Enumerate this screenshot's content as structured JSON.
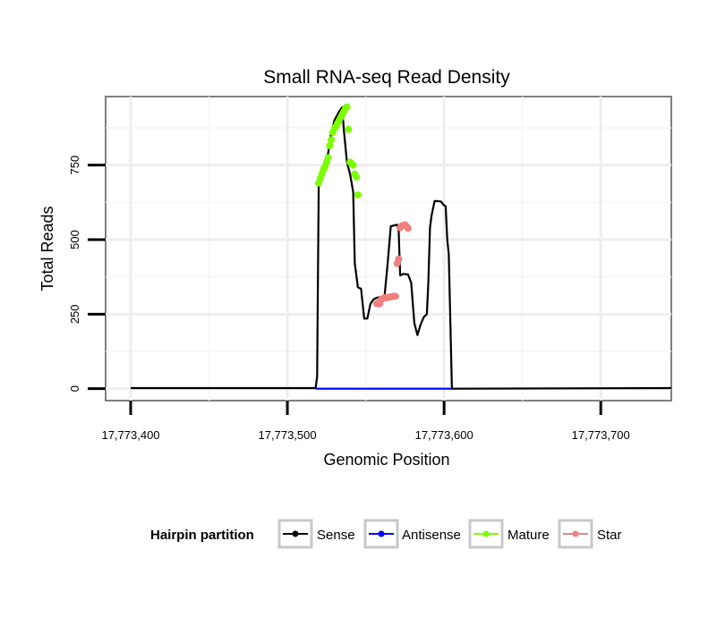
{
  "chart_data": {
    "type": "line",
    "title": "Small RNA-seq Read Density",
    "xlabel": "Genomic Position",
    "ylabel": "Total Reads",
    "xlim": [
      17773384,
      17773745
    ],
    "ylim": [
      -40,
      980
    ],
    "x_ticks": [
      {
        "value": 17773400,
        "label": "17,773,400"
      },
      {
        "value": 17773500,
        "label": "17,773,500"
      },
      {
        "value": 17773600,
        "label": "17,773,600"
      },
      {
        "value": 17773700,
        "label": "17,773,700"
      }
    ],
    "y_ticks": [
      {
        "value": 0,
        "label": "0"
      },
      {
        "value": 250,
        "label": "250"
      },
      {
        "value": 500,
        "label": "500"
      },
      {
        "value": 750,
        "label": "750"
      }
    ],
    "grid": true,
    "legend": {
      "title": "Hairpin partition",
      "placement": "bottom",
      "entries": [
        {
          "name": "Sense",
          "color": "#000000"
        },
        {
          "name": "Antisense",
          "color": "#0000ff"
        },
        {
          "name": "Mature",
          "color": "#7cfc00"
        },
        {
          "name": "Star",
          "color": "#f08080"
        }
      ]
    },
    "series": [
      {
        "name": "Sense",
        "color": "#000000",
        "style": "line",
        "points": [
          [
            17773400,
            2
          ],
          [
            17773518,
            2
          ],
          [
            17773519,
            40
          ],
          [
            17773520,
            690
          ],
          [
            17773523,
            730
          ],
          [
            17773526,
            790
          ],
          [
            17773528,
            860
          ],
          [
            17773530,
            900
          ],
          [
            17773533,
            930
          ],
          [
            17773535,
            945
          ],
          [
            17773536,
            870
          ],
          [
            17773538,
            760
          ],
          [
            17773540,
            720
          ],
          [
            17773542,
            660
          ],
          [
            17773543,
            420
          ],
          [
            17773545,
            340
          ],
          [
            17773547,
            335
          ],
          [
            17773549,
            235
          ],
          [
            17773551,
            235
          ],
          [
            17773553,
            285
          ],
          [
            17773555,
            300
          ],
          [
            17773557,
            305
          ],
          [
            17773562,
            310
          ],
          [
            17773564,
            420
          ],
          [
            17773566,
            545
          ],
          [
            17773570,
            550
          ],
          [
            17773571,
            530
          ],
          [
            17773572,
            380
          ],
          [
            17773574,
            385
          ],
          [
            17773577,
            383
          ],
          [
            17773579,
            355
          ],
          [
            17773581,
            220
          ],
          [
            17773583,
            180
          ],
          [
            17773585,
            215
          ],
          [
            17773587,
            240
          ],
          [
            17773589,
            250
          ],
          [
            17773590,
            360
          ],
          [
            17773591,
            540
          ],
          [
            17773592,
            580
          ],
          [
            17773594,
            630
          ],
          [
            17773598,
            628
          ],
          [
            17773600,
            615
          ],
          [
            17773601,
            612
          ],
          [
            17773602,
            500
          ],
          [
            17773603,
            450
          ],
          [
            17773605,
            0
          ],
          [
            17773745,
            2
          ]
        ]
      },
      {
        "name": "Antisense",
        "color": "#0000ff",
        "style": "line",
        "points": [
          [
            17773518,
            0
          ],
          [
            17773605,
            0
          ]
        ]
      },
      {
        "name": "Mature",
        "color": "#7cfc00",
        "style": "points",
        "points": [
          [
            17773520,
            690
          ],
          [
            17773521,
            705
          ],
          [
            17773522,
            720
          ],
          [
            17773523,
            735
          ],
          [
            17773524,
            745
          ],
          [
            17773525,
            760
          ],
          [
            17773526,
            775
          ],
          [
            17773527,
            815
          ],
          [
            17773528,
            835
          ],
          [
            17773529,
            860
          ],
          [
            17773530,
            875
          ],
          [
            17773531,
            880
          ],
          [
            17773532,
            890
          ],
          [
            17773533,
            900
          ],
          [
            17773534,
            910
          ],
          [
            17773535,
            920
          ],
          [
            17773536,
            930
          ],
          [
            17773537,
            940
          ],
          [
            17773538,
            945
          ],
          [
            17773539,
            870
          ],
          [
            17773540,
            760
          ],
          [
            17773541,
            755
          ],
          [
            17773542,
            750
          ],
          [
            17773543,
            720
          ],
          [
            17773544,
            710
          ],
          [
            17773545,
            650
          ]
        ]
      },
      {
        "name": "Star",
        "color": "#f08080",
        "style": "points",
        "points": [
          [
            17773557,
            285
          ],
          [
            17773558,
            288
          ],
          [
            17773559,
            285
          ],
          [
            17773560,
            300
          ],
          [
            17773561,
            302
          ],
          [
            17773562,
            305
          ],
          [
            17773563,
            305
          ],
          [
            17773564,
            306
          ],
          [
            17773565,
            307
          ],
          [
            17773566,
            308
          ],
          [
            17773567,
            309
          ],
          [
            17773568,
            310
          ],
          [
            17773569,
            310
          ],
          [
            17773570,
            420
          ],
          [
            17773571,
            435
          ],
          [
            17773572,
            540
          ],
          [
            17773573,
            546
          ],
          [
            17773574,
            548
          ],
          [
            17773575,
            550
          ],
          [
            17773576,
            545
          ],
          [
            17773577,
            538
          ]
        ]
      }
    ]
  }
}
